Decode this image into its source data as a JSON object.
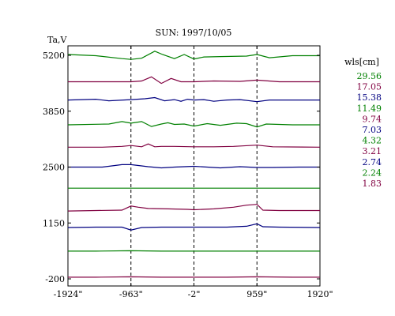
{
  "chart_data": {
    "type": "line",
    "title": "SUN: 1997/10/05",
    "ylabel": "Ta,V",
    "xlabel": "",
    "xlim": [
      -1924,
      1920
    ],
    "ylim": [
      -200,
      5400
    ],
    "x_ticks": [
      -1924,
      -963,
      -2,
      959,
      1920
    ],
    "x_tick_labels": [
      "-1924\"",
      "-963\"",
      "-2\"",
      "959\"",
      "1920\""
    ],
    "y_ticks": [
      -200,
      1150,
      2500,
      3850,
      5200
    ],
    "y_tick_labels": [
      "-200",
      "1150",
      "2500",
      "3850",
      "5200"
    ],
    "vlines": [
      -963,
      -2,
      959
    ],
    "grid": false,
    "legend": {
      "title": "wls[cm]",
      "placement": "right",
      "entries": [
        {
          "label": "29.56",
          "color": "#008000"
        },
        {
          "label": "17.05",
          "color": "#800040"
        },
        {
          "label": "15.38",
          "color": "#000080"
        },
        {
          "label": "11.49",
          "color": "#008000"
        },
        {
          "label": "9.74",
          "color": "#800040"
        },
        {
          "label": "7.03",
          "color": "#000080"
        },
        {
          "label": "4.32",
          "color": "#008000"
        },
        {
          "label": "3.21",
          "color": "#800040"
        },
        {
          "label": "2.74",
          "color": "#000080"
        },
        {
          "label": "2.24",
          "color": "#008000"
        },
        {
          "label": "1.83",
          "color": "#800040"
        }
      ]
    },
    "series": [
      {
        "name": "29.56",
        "color": "#008000",
        "x": [
          -1924,
          -1500,
          -1100,
          -963,
          -800,
          -600,
          -480,
          -300,
          -150,
          -2,
          150,
          400,
          800,
          959,
          1150,
          1500,
          1920
        ],
        "y": [
          5220,
          5190,
          5120,
          5100,
          5130,
          5300,
          5220,
          5120,
          5220,
          5110,
          5160,
          5170,
          5180,
          5220,
          5140,
          5190,
          5190
        ]
      },
      {
        "name": "17.05",
        "color": "#800040",
        "x": [
          -1924,
          -1200,
          -963,
          -800,
          -650,
          -500,
          -350,
          -200,
          -2,
          300,
          700,
          959,
          1300,
          1920
        ],
        "y": [
          4560,
          4560,
          4560,
          4580,
          4680,
          4520,
          4640,
          4560,
          4560,
          4580,
          4570,
          4600,
          4560,
          4560
        ]
      },
      {
        "name": "15.38",
        "color": "#000080",
        "x": [
          -1924,
          -1500,
          -1300,
          -963,
          -750,
          -600,
          -450,
          -300,
          -200,
          -100,
          -2,
          150,
          300,
          500,
          700,
          959,
          1150,
          1500,
          1920
        ],
        "y": [
          4120,
          4140,
          4100,
          4130,
          4150,
          4180,
          4100,
          4130,
          4090,
          4140,
          4120,
          4130,
          4090,
          4120,
          4130,
          4080,
          4120,
          4120,
          4120
        ]
      },
      {
        "name": "11.49",
        "color": "#008000",
        "x": [
          -1924,
          -1300,
          -1100,
          -963,
          -800,
          -650,
          -500,
          -400,
          -300,
          -150,
          -2,
          200,
          400,
          650,
          800,
          959,
          1100,
          1500,
          1920
        ],
        "y": [
          3520,
          3540,
          3600,
          3560,
          3600,
          3480,
          3540,
          3570,
          3530,
          3540,
          3490,
          3550,
          3510,
          3560,
          3550,
          3470,
          3540,
          3520,
          3520
        ]
      },
      {
        "name": "9.74",
        "color": "#800040",
        "x": [
          -1924,
          -1400,
          -1100,
          -963,
          -800,
          -700,
          -600,
          -500,
          -300,
          -2,
          300,
          600,
          959,
          1200,
          1920
        ],
        "y": [
          2980,
          2980,
          3000,
          3020,
          2990,
          3060,
          2990,
          3000,
          3000,
          2990,
          2990,
          3000,
          3030,
          2990,
          2980
        ]
      },
      {
        "name": "7.03",
        "color": "#000080",
        "x": [
          -1924,
          -1400,
          -1100,
          -963,
          -700,
          -500,
          -300,
          -2,
          400,
          700,
          959,
          1200,
          1600,
          1920
        ],
        "y": [
          2500,
          2500,
          2560,
          2560,
          2510,
          2480,
          2500,
          2520,
          2480,
          2510,
          2490,
          2490,
          2500,
          2500
        ]
      },
      {
        "name": "4.32",
        "color": "#008000",
        "x": [
          -1924,
          -1500,
          -963,
          -500,
          -2,
          500,
          959,
          1500,
          1920
        ],
        "y": [
          1990,
          1990,
          1990,
          1990,
          1990,
          1990,
          1990,
          1990,
          1990
        ]
      },
      {
        "name": "3.21",
        "color": "#800040",
        "x": [
          -1924,
          -1500,
          -1100,
          -963,
          -850,
          -700,
          -400,
          -100,
          -2,
          300,
          600,
          800,
          959,
          1050,
          1300,
          1920
        ],
        "y": [
          1440,
          1450,
          1460,
          1560,
          1530,
          1500,
          1490,
          1480,
          1470,
          1490,
          1530,
          1580,
          1600,
          1460,
          1450,
          1450
        ]
      },
      {
        "name": "2.74",
        "color": "#000080",
        "x": [
          -1924,
          -1500,
          -1100,
          -963,
          -800,
          -500,
          -2,
          500,
          800,
          959,
          1050,
          1300,
          1920
        ],
        "y": [
          1040,
          1050,
          1050,
          980,
          1040,
          1050,
          1050,
          1050,
          1070,
          1130,
          1060,
          1050,
          1040
        ]
      },
      {
        "name": "2.24",
        "color": "#008000",
        "x": [
          -1924,
          -1500,
          -963,
          -500,
          -2,
          500,
          959,
          1500,
          1920
        ],
        "y": [
          470,
          470,
          480,
          470,
          470,
          470,
          470,
          470,
          470
        ]
      },
      {
        "name": "1.83",
        "color": "#800040",
        "x": [
          -1924,
          -1500,
          -963,
          -500,
          -2,
          500,
          959,
          1500,
          1920
        ],
        "y": [
          -160,
          -160,
          -150,
          -160,
          -160,
          -160,
          -150,
          -160,
          -160
        ]
      }
    ]
  }
}
